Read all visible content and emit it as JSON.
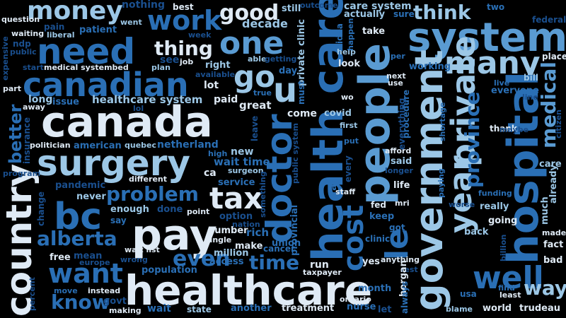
{
  "words": {
    "healthcare": "healthcare",
    "canada": "canada",
    "health_care": "health care",
    "people": "people",
    "system": "system",
    "pay": "pay",
    "surgery": "surgery",
    "canadian": "canadian",
    "need": "need",
    "hospital": "hospital",
    "country": "country",
    "government": "government",
    "bc": "bc",
    "many": "many",
    "year": "year",
    "private": "private",
    "doctor": "doctor",
    "money": "money",
    "work": "work",
    "one": "one",
    "want": "want",
    "go": "go",
    "u": "u",
    "le": "le",
    "good": "good",
    "tax": "tax",
    "cost": "cost",
    "well": "well",
    "problem": "problem",
    "alberta": "alberta",
    "think": "think",
    "thing": "thing",
    "even": "even",
    "time": "time",
    "know": "know",
    "way": "way",
    "province": "province",
    "medical": "medical",
    "better": "better",
    "healthcare_system": "healthcare system",
    "private_clinic": "private clinic",
    "care_system": "care system",
    "decade": "decade",
    "nothing": "nothing",
    "best": "best",
    "still": "still",
    "outcome": "outcome",
    "two": "two",
    "federal": "federal",
    "question": "question",
    "waiting": "waiting",
    "liberal": "liberal",
    "pain": "pain",
    "patient": "patient",
    "went": "went",
    "week": "week",
    "idea": "idea",
    "actually": "actually",
    "sure": "sure",
    "take": "take",
    "plan": "plan",
    "job": "job",
    "able": "able",
    "getting": "getting",
    "help": "help",
    "happen": "happen",
    "ontario": "ontario",
    "per": "per",
    "place": "place",
    "expensive": "expensive",
    "public": "public",
    "start": "start",
    "medical_systembed": "medical systembed",
    "ndp": "ndp",
    "see": "see",
    "available": "available",
    "right": "right",
    "day": "day",
    "look": "look",
    "lot": "lot",
    "working": "working",
    "next": "next",
    "use": "use",
    "live": "live",
    "everyone": "everyone",
    "line": "line",
    "bill": "bill",
    "part": "part",
    "away": "away",
    "long": "long",
    "issue": "issue",
    "true": "true",
    "paid": "paid",
    "must": "must",
    "wo": "wo",
    "procedure": "procedure",
    "great": "great",
    "come": "come",
    "covid": "covid",
    "lol": "lol",
    "first": "first",
    "leave": "leave",
    "everything": "everything",
    "shortage": "shortage",
    "thank": "thank",
    "maybe": "maybe",
    "citizen": "citizen",
    "insurance": "insurance",
    "politician": "politician",
    "american": "american",
    "quebec": "quebec",
    "netherland": "netherland",
    "put": "put",
    "high": "high",
    "new": "new",
    "public_system": "public system",
    "afford": "afford",
    "said": "said",
    "far": "far",
    "longer": "longer",
    "already": "already",
    "program": "program",
    "different": "different",
    "wait_time": "wait time",
    "surgeon": "surgeon",
    "every": "every",
    "ca": "ca",
    "care": "care",
    "pandemic": "pandemic",
    "service": "service",
    "life": "life",
    "paying": "paying",
    "funding": "funding",
    "never": "never",
    "staff": "staff",
    "something": "something",
    "enough": "enough",
    "done": "done",
    "fed": "fed",
    "mri": "mri",
    "worse": "worse",
    "really": "really",
    "change": "change",
    "say": "say",
    "point": "point",
    "option": "option",
    "keep": "keep",
    "nation": "nation",
    "much": "much",
    "going": "going",
    "got": "got",
    "rich": "rich",
    "number": "number",
    "provincial": "provincial",
    "single": "single",
    "clinic": "clinic",
    "made": "made",
    "back": "back",
    "free": "free",
    "make": "make",
    "union": "union",
    "mean": "mean",
    "wait_list": "wait list",
    "million": "million",
    "cancer": "cancer",
    "billion": "billion",
    "fact": "fact",
    "europe": "europe",
    "wrong": "wrong",
    "access": "access",
    "yes": "yes",
    "anything": "anything",
    "bad": "bad",
    "population": "population",
    "run": "run",
    "taxpayer": "taxpayer",
    "rest": "rest",
    "move": "move",
    "instead": "instead",
    "month": "month",
    "horgan": "horgan",
    "usa": "usa",
    "find": "find",
    "least": "least",
    "percent": "percent",
    "govt": "govt",
    "making": "making",
    "wait": "wait",
    "state": "state",
    "another": "another",
    "treatment": "treatment",
    "nurse": "nurse",
    "always": "always",
    "let": "let",
    "blame": "blame",
    "world": "world",
    "trudeau": "trudeau"
  },
  "colors": {
    "background": "#000000",
    "dark_blue": "#1a4f8e",
    "blue": "#2a6fb5",
    "mid_blue": "#5a9bd2",
    "light_blue": "#9cc7e6",
    "near_white": "#dfeaf5"
  }
}
